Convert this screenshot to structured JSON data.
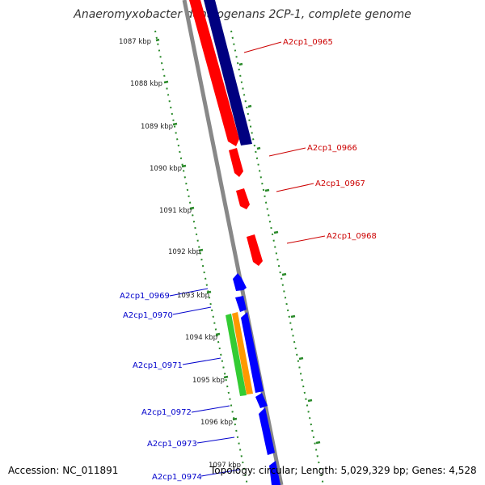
{
  "title": "Anaeromyxobacter dehalogenans 2CP-1, complete genome",
  "footer": {
    "accession": "Accession: NC_011891",
    "summary": "Topology: circular; Length: 5,029,329 bp; Genes: 4,528"
  },
  "colors": {
    "forward_gene": "#ff0000",
    "reverse_gene": "#0000ff",
    "dark_gene": "#000080",
    "green_feature": "#33cc33",
    "orange_feature": "#ff9900",
    "backbone": "#888888",
    "ruler": "#2a8a2a",
    "forward_label": "#cc0000",
    "reverse_label": "#0000cc"
  },
  "ruler_labels": [
    "1087 kbp",
    "1088 kbp",
    "1089 kbp",
    "1090 kbp",
    "1091 kbp",
    "1092 kbp",
    "1093 kbp",
    "1094 kbp",
    "1095 kbp",
    "1096 kbp",
    "1097 kbp"
  ],
  "genes_forward": [
    "A2cp1_0965",
    "A2cp1_0966",
    "A2cp1_0967",
    "A2cp1_0968"
  ],
  "genes_reverse": [
    "A2cp1_0969",
    "A2cp1_0970",
    "A2cp1_0971",
    "A2cp1_0972",
    "A2cp1_0973",
    "A2cp1_0974"
  ]
}
